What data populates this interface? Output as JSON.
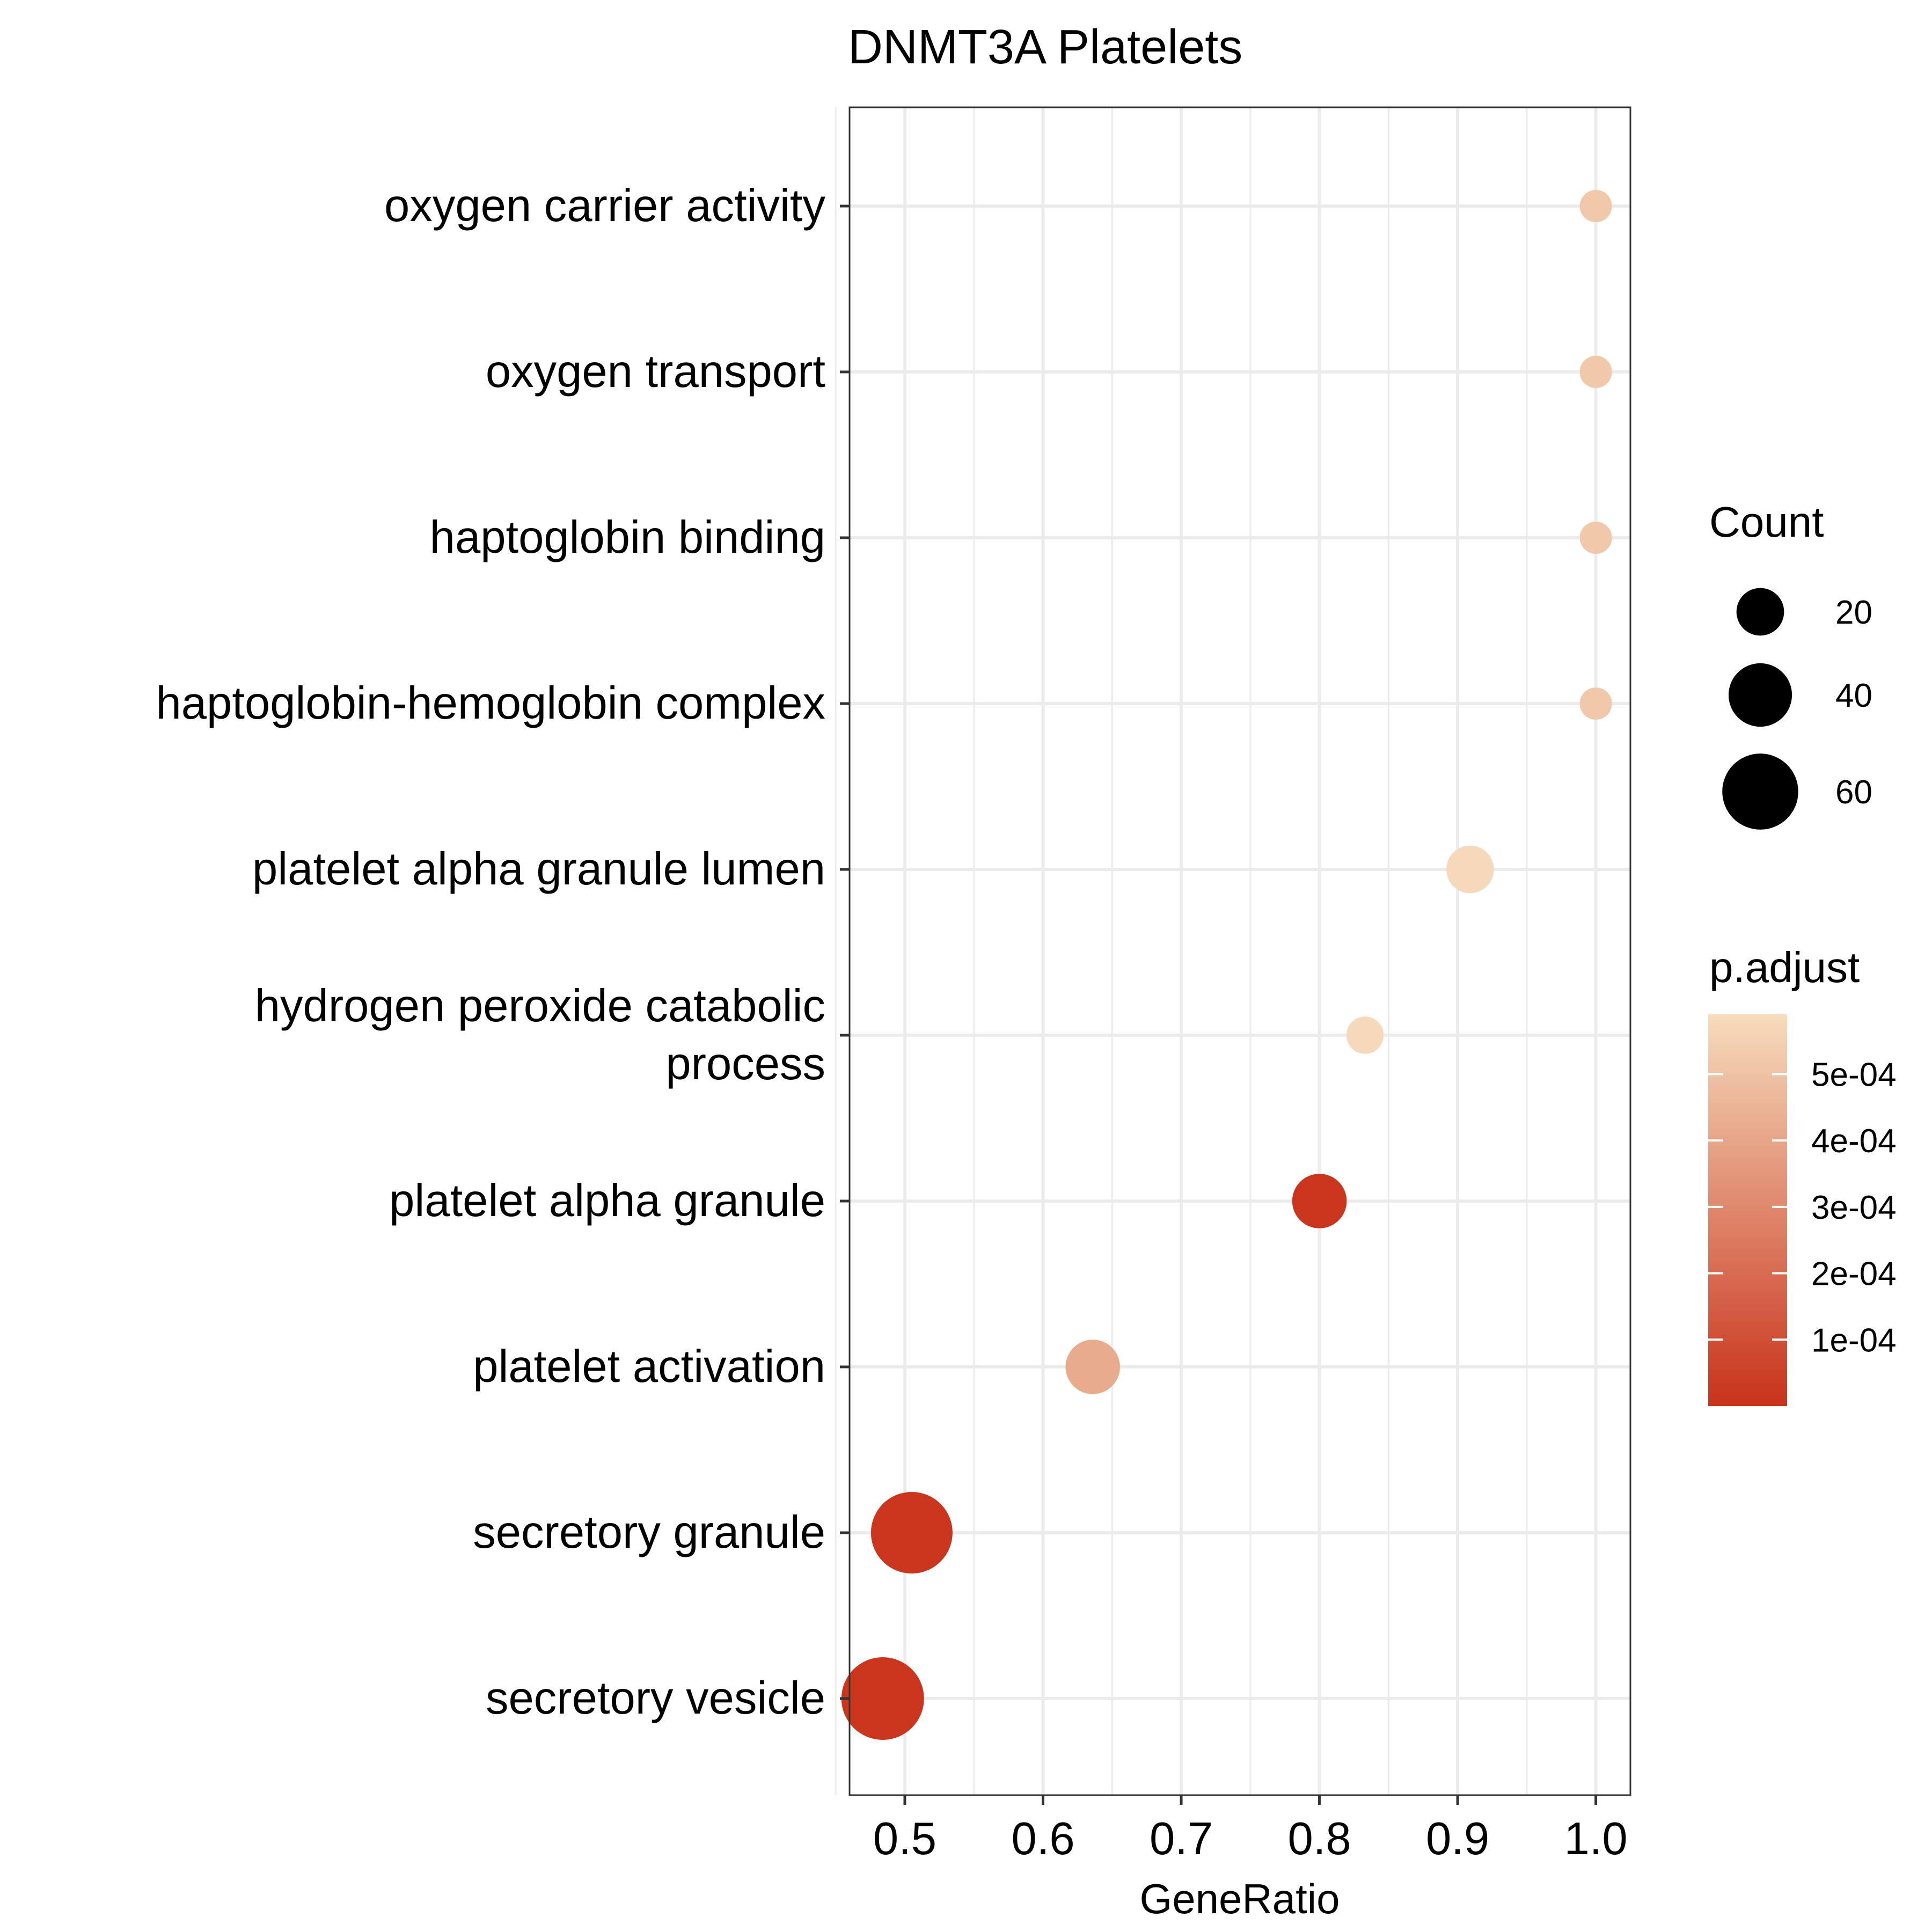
{
  "chart_data": {
    "type": "scatter",
    "title": "DNMT3A Platelets",
    "xlabel": "GeneRatio",
    "ylabel": "",
    "xlim": [
      0.46,
      1.025
    ],
    "x_ticks": [
      0.5,
      0.6,
      0.7,
      0.8,
      0.9,
      1.0
    ],
    "x_tick_labels": [
      "0.5",
      "0.6",
      "0.7",
      "0.8",
      "0.9",
      "1.0"
    ],
    "grid": true,
    "legend_position": "right",
    "categories": [
      "oxygen carrier activity",
      "oxygen transport",
      "haptoglobin binding",
      "haptoglobin-hemoglobin complex",
      "platelet alpha granule lumen",
      "hydrogen peroxide catabolic process",
      "platelet alpha granule",
      "platelet activation",
      "secretory granule",
      "secretory vesicle"
    ],
    "category_label_lines": [
      [
        "oxygen carrier activity"
      ],
      [
        "oxygen transport"
      ],
      [
        "haptoglobin binding"
      ],
      [
        "haptoglobin-hemoglobin complex"
      ],
      [
        "platelet alpha granule lumen"
      ],
      [
        "hydrogen peroxide catabolic",
        "process"
      ],
      [
        "platelet alpha granule"
      ],
      [
        "platelet activation"
      ],
      [
        "secretory granule"
      ],
      [
        "secretory vesicle"
      ]
    ],
    "points": [
      {
        "category": "oxygen carrier activity",
        "gene_ratio": 1.0,
        "count": 6,
        "p_adjust": 0.00052
      },
      {
        "category": "oxygen transport",
        "gene_ratio": 1.0,
        "count": 6,
        "p_adjust": 0.00052
      },
      {
        "category": "haptoglobin binding",
        "gene_ratio": 1.0,
        "count": 6,
        "p_adjust": 0.00052
      },
      {
        "category": "haptoglobin-hemoglobin complex",
        "gene_ratio": 1.0,
        "count": 6,
        "p_adjust": 0.00052
      },
      {
        "category": "platelet alpha granule lumen",
        "gene_ratio": 0.909,
        "count": 20,
        "p_adjust": 0.00058
      },
      {
        "category": "hydrogen peroxide catabolic process",
        "gene_ratio": 0.833,
        "count": 10,
        "p_adjust": 0.00058
      },
      {
        "category": "platelet alpha granule",
        "gene_ratio": 0.8,
        "count": 28,
        "p_adjust": 1e-05
      },
      {
        "category": "platelet activation",
        "gene_ratio": 0.636,
        "count": 28,
        "p_adjust": 0.00042
      },
      {
        "category": "secretory granule",
        "gene_ratio": 0.505,
        "count": 70,
        "p_adjust": 1e-05
      },
      {
        "category": "secretory vesicle",
        "gene_ratio": 0.484,
        "count": 72,
        "p_adjust": 1e-05
      }
    ],
    "size_legend": {
      "title": "Count",
      "values": [
        20,
        40,
        60
      ],
      "labels": [
        "20",
        "40",
        "60"
      ]
    },
    "color_legend": {
      "title": "p.adjust",
      "range": [
        0.0,
        0.00059
      ],
      "low_color": "#c8321a",
      "high_color": "#f6dcbd",
      "ticks": [
        0.0001,
        0.0002,
        0.0003,
        0.0004,
        0.0005
      ],
      "tick_labels": [
        "1e-04",
        "2e-04",
        "3e-04",
        "4e-04",
        "5e-04"
      ]
    }
  }
}
